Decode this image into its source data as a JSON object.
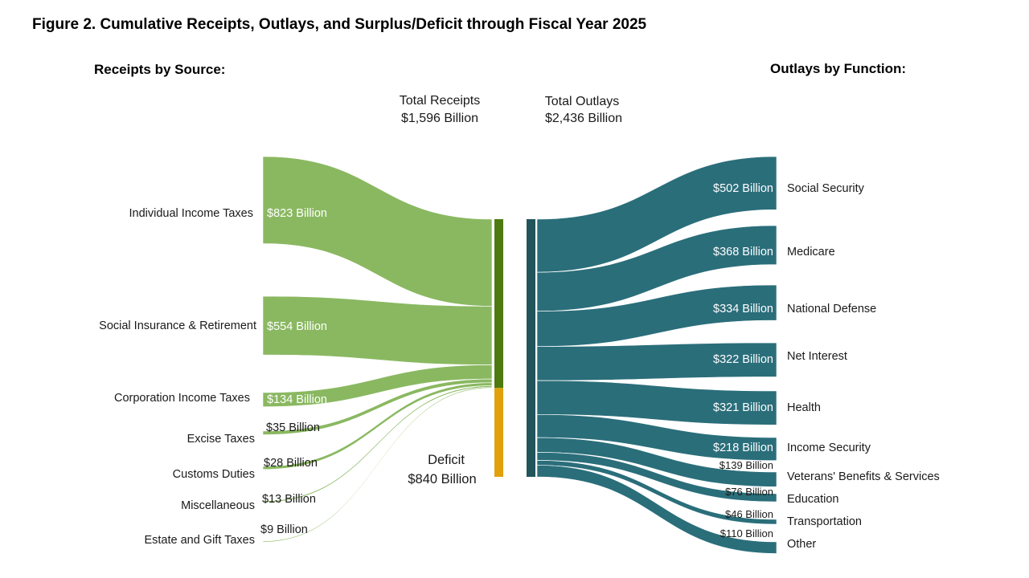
{
  "chart_data": {
    "type": "sankey",
    "title": "Figure 2. Cumulative Receipts, Outlays, and Surplus/Deficit through Fiscal Year 2025",
    "units": "Billions of dollars",
    "receipts_heading": "Receipts by Source:",
    "outlays_heading": "Outlays by Function:",
    "total_receipts": {
      "label": "Total Receipts",
      "value": 1596,
      "value_label": "$1,596 Billion"
    },
    "total_outlays": {
      "label": "Total Outlays",
      "value": 2436,
      "value_label": "$2,436 Billion"
    },
    "deficit": {
      "label": "Deficit",
      "value": 840,
      "value_label": "$840 Billion"
    },
    "receipts": [
      {
        "name": "Individual Income Taxes",
        "value": 823,
        "value_label": "$823 Billion"
      },
      {
        "name": "Social Insurance & Retirement",
        "value": 554,
        "value_label": "$554 Billion"
      },
      {
        "name": "Corporation Income Taxes",
        "value": 134,
        "value_label": "$134 Billion"
      },
      {
        "name": "Excise Taxes",
        "value": 35,
        "value_label": "$35 Billion"
      },
      {
        "name": "Customs Duties",
        "value": 28,
        "value_label": "$28 Billion"
      },
      {
        "name": "Miscellaneous",
        "value": 13,
        "value_label": "$13 Billion"
      },
      {
        "name": "Estate and Gift Taxes",
        "value": 9,
        "value_label": "$9 Billion"
      }
    ],
    "outlays": [
      {
        "name": "Social Security",
        "value": 502,
        "value_label": "$502 Billion"
      },
      {
        "name": "Medicare",
        "value": 368,
        "value_label": "$368 Billion"
      },
      {
        "name": "National Defense",
        "value": 334,
        "value_label": "$334 Billion"
      },
      {
        "name": "Net Interest",
        "value": 322,
        "value_label": "$322 Billion"
      },
      {
        "name": "Health",
        "value": 321,
        "value_label": "$321 Billion"
      },
      {
        "name": "Income Security",
        "value": 218,
        "value_label": "$218 Billion"
      },
      {
        "name": "Veterans' Benefits & Services",
        "value": 139,
        "value_label": "$139 Billion"
      },
      {
        "name": "Education",
        "value": 76,
        "value_label": "$76 Billion"
      },
      {
        "name": "Transportation",
        "value": 46,
        "value_label": "$46 Billion"
      },
      {
        "name": "Other",
        "value": 110,
        "value_label": "$110 Billion"
      }
    ],
    "colors": {
      "receipts_flow": "#8ab861",
      "receipts_bar": "#4e7a0f",
      "deficit_bar": "#e0a10d",
      "outlays_flow": "#2a6e7a",
      "outlays_bar": "#21545b"
    }
  }
}
